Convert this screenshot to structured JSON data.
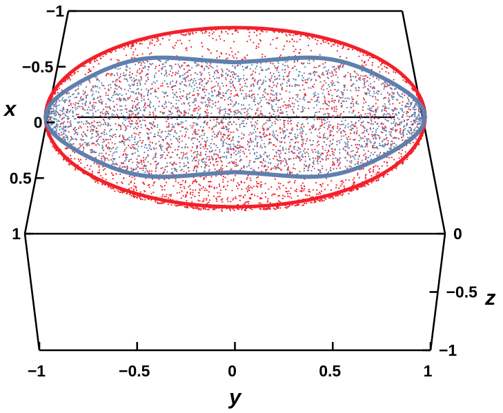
{
  "chart_data": {
    "type": "scatter",
    "projection": "3d-box",
    "axes": {
      "x": {
        "label": "x",
        "range": [
          -1,
          1
        ],
        "ticks": [
          {
            "value": -1,
            "label": "−1"
          },
          {
            "value": -0.5,
            "label": "−0.5"
          },
          {
            "value": 0,
            "label": "0"
          },
          {
            "value": 0.5,
            "label": "0.5"
          },
          {
            "value": 1,
            "label": "1"
          }
        ]
      },
      "y": {
        "label": "y",
        "range": [
          -1,
          1
        ],
        "ticks": [
          {
            "value": -1,
            "label": "−1"
          },
          {
            "value": -0.5,
            "label": "−0.5"
          },
          {
            "value": 0,
            "label": "0"
          },
          {
            "value": 0.5,
            "label": "0.5"
          },
          {
            "value": 1,
            "label": "1"
          }
        ]
      },
      "z": {
        "label": "z",
        "range": [
          -1,
          0
        ],
        "ticks": [
          {
            "value": 0,
            "label": "0"
          },
          {
            "value": -0.5,
            "label": "−0.5"
          },
          {
            "value": -1,
            "label": "−1"
          }
        ]
      }
    },
    "series": [
      {
        "color": "#f2202a",
        "marker": "point",
        "shape": "lower hemisphere surface, points dense at rim x²+y²=1, z=0",
        "rim": {
          "x_range": [
            -1,
            1
          ],
          "y_range": [
            -1,
            1
          ],
          "z": 0
        },
        "z_range": [
          -1,
          0
        ]
      },
      {
        "color": "#5f80ad",
        "marker": "point",
        "shape": "points inside the unit disk near z=0 with a dense peanut-shaped boundary ring",
        "ring": {
          "y_range": [
            -1,
            1
          ],
          "x_half_width_at_center": 0.6,
          "x_half_width_at_lobes": 0.75
        }
      }
    ],
    "grid": false,
    "legend": "none"
  }
}
